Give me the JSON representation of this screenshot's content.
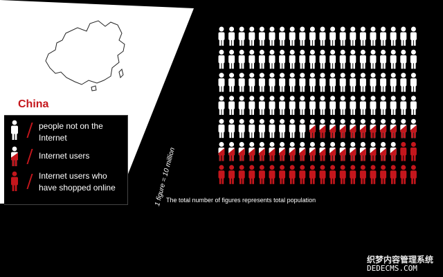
{
  "legend": {
    "not_online": "people not on the Internet",
    "internet_users": "Internet users",
    "shoppers": "Internet users who have shopped online"
  },
  "country": "China",
  "scale_note": "1 figure = 10 million",
  "footnote": "The total number of figures represents total population",
  "watermark": {
    "line1": "织梦内容管理系统",
    "line2": "DEDECMS.COM"
  },
  "colors": {
    "red": "#c4161c",
    "white": "#ffffff",
    "background": "#000000"
  },
  "chart_data": {
    "type": "pictogram",
    "unit_value": 10,
    "unit_label": "million",
    "figures_per_row": 20,
    "categories": [
      "people not on the Internet",
      "Internet users",
      "Internet users who have shopped online"
    ],
    "values": [
      89,
      29,
      22
    ],
    "total_figures": 140
  }
}
